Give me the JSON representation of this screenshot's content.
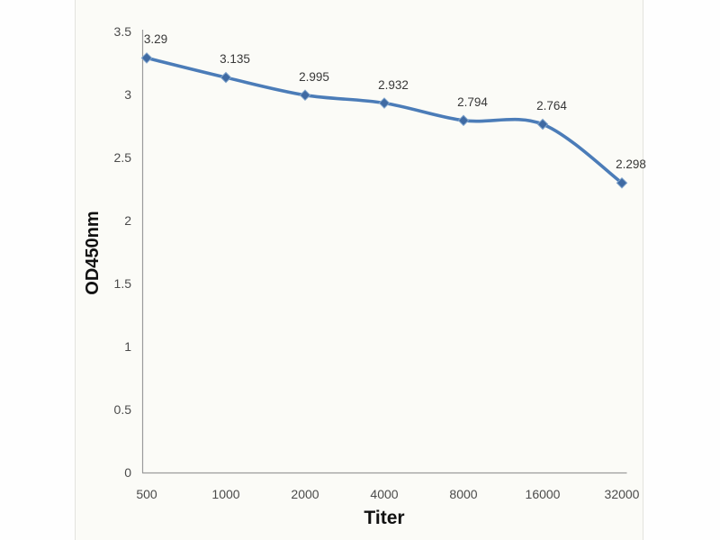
{
  "page": {
    "background": "#fefefe",
    "panel_background": "#fbfbf7",
    "panel_border_color": "#e3e3de"
  },
  "chart_data": {
    "type": "line",
    "title": "",
    "xlabel": "Titer",
    "ylabel": "OD450nm",
    "categories": [
      "500",
      "1000",
      "2000",
      "4000",
      "8000",
      "16000",
      "32000"
    ],
    "series": [
      {
        "name": "OD450nm",
        "values": [
          3.29,
          3.135,
          2.995,
          2.932,
          2.794,
          2.764,
          2.298
        ],
        "data_labels": [
          "3.29",
          "3.135",
          "2.995",
          "2.932",
          "2.794",
          "2.764",
          "2.298"
        ]
      }
    ],
    "y_ticks": [
      {
        "label": "3.5",
        "value": 3.5
      },
      {
        "label": "3",
        "value": 3.0
      },
      {
        "label": "2.5",
        "value": 2.5
      },
      {
        "label": "2",
        "value": 2.0
      },
      {
        "label": "1.5",
        "value": 1.5
      },
      {
        "label": "1",
        "value": 1.0
      },
      {
        "label": "0.5",
        "value": 0.5
      },
      {
        "label": "0",
        "value": 0.0
      }
    ],
    "ylim": [
      0,
      3.5
    ],
    "x_axis_scale": "categorical-doubling",
    "grid": "off",
    "legend": "none",
    "smooth_line": true,
    "marker_shape": "diamond",
    "line_color": "#4b7cb8",
    "marker_color": "#3f6aa3",
    "marker_edge_color": "#7ea3cc",
    "axis_line_color": "#9b9b9b",
    "tick_label_color": "#4b4b4b",
    "data_label_color": "#383838",
    "axis_title_color": "#111111"
  }
}
